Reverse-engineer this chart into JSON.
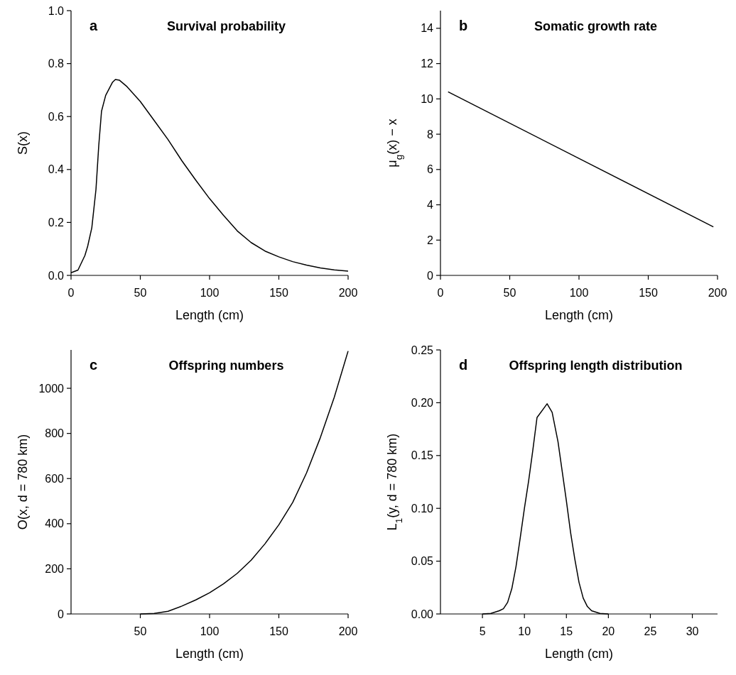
{
  "chart_data": [
    {
      "type": "line",
      "title": "Survival probability",
      "annotations": [
        "a"
      ],
      "xlabel": "Length (cm)",
      "ylabel": "S(x)",
      "xlim": [
        0,
        200
      ],
      "xticks": [
        0,
        50,
        100,
        150,
        200
      ],
      "ylim": [
        0,
        1
      ],
      "yticks": [
        {
          "value": 0,
          "label": "0.0"
        },
        {
          "value": 0.2,
          "label": "0.2"
        },
        {
          "value": 0.4,
          "label": "0.4"
        },
        {
          "value": 0.6,
          "label": "0.6"
        },
        {
          "value": 0.8,
          "label": "0.8"
        },
        {
          "value": 1,
          "label": "1.0"
        }
      ],
      "grid": false,
      "series": [
        {
          "color": "#000000",
          "x": [
            0,
            5,
            10,
            12,
            15,
            18,
            20,
            22,
            25,
            30,
            32,
            35,
            40,
            50,
            60,
            70,
            80,
            90,
            100,
            110,
            120,
            130,
            140,
            150,
            160,
            170,
            180,
            190,
            200
          ],
          "values": [
            0.01,
            0.02,
            0.075,
            0.11,
            0.18,
            0.325,
            0.49,
            0.62,
            0.68,
            0.73,
            0.74,
            0.737,
            0.715,
            0.657,
            0.585,
            0.513,
            0.433,
            0.36,
            0.29,
            0.227,
            0.168,
            0.124,
            0.092,
            0.07,
            0.052,
            0.039,
            0.028,
            0.021,
            0.016
          ]
        }
      ]
    },
    {
      "type": "line",
      "title": "Somatic growth rate",
      "annotations": [
        "b"
      ],
      "xlabel": "Length (cm)",
      "ylabel": "μ$_{g}$(x) − x",
      "xlim": [
        0,
        200
      ],
      "xticks": [
        0,
        50,
        100,
        150,
        200
      ],
      "ylim": [
        0,
        15
      ],
      "yticks": [
        0,
        2,
        4,
        6,
        8,
        10,
        12,
        14
      ],
      "grid": false,
      "series": [
        {
          "color": "#000000",
          "x": [
            5.5,
            197
          ],
          "values": [
            10.4,
            2.75
          ]
        }
      ]
    },
    {
      "type": "line",
      "title": "Offspring numbers",
      "annotations": [
        "c"
      ],
      "xlabel": "Length (cm)",
      "ylabel": "O(x, d = 780 km)",
      "xlim": [
        0,
        200
      ],
      "xticks": [
        50,
        100,
        150,
        200
      ],
      "ylim": [
        0,
        1170
      ],
      "yticks": [
        0,
        200,
        400,
        600,
        800,
        1000
      ],
      "grid": false,
      "series": [
        {
          "color": "#000000",
          "x": [
            50,
            60,
            70,
            80,
            90,
            100,
            110,
            120,
            130,
            140,
            150,
            160,
            170,
            180,
            190,
            200
          ],
          "values": [
            0,
            2,
            12,
            35,
            62,
            94,
            133,
            180,
            238,
            311,
            395,
            494,
            625,
            782,
            960,
            1165
          ]
        }
      ]
    },
    {
      "type": "line",
      "title": "Offspring length distribution",
      "annotations": [
        "d"
      ],
      "xlabel": "Length (cm)",
      "ylabel": "L$_{1}$(y, d = 780 km)",
      "xlim": [
        0,
        33
      ],
      "xticks": [
        5,
        10,
        15,
        20,
        25,
        30
      ],
      "ylim": [
        0,
        0.25
      ],
      "yticks": [
        {
          "value": 0,
          "label": "0.00"
        },
        {
          "value": 0.05,
          "label": "0.05"
        },
        {
          "value": 0.1,
          "label": "0.10"
        },
        {
          "value": 0.15,
          "label": "0.15"
        },
        {
          "value": 0.2,
          "label": "0.20"
        },
        {
          "value": 0.25,
          "label": "0.25"
        }
      ],
      "grid": false,
      "series": [
        {
          "color": "#000000",
          "x": [
            5,
            6,
            7,
            7.5,
            8,
            8.5,
            9,
            9.5,
            10,
            10.5,
            11,
            11.5,
            12.7,
            13.3,
            14,
            14.5,
            15,
            15.5,
            16,
            16.5,
            17,
            17.5,
            18,
            19,
            20
          ],
          "values": [
            0,
            0.0005,
            0.003,
            0.005,
            0.011,
            0.024,
            0.045,
            0.072,
            0.1,
            0.126,
            0.155,
            0.186,
            0.199,
            0.191,
            0.163,
            0.135,
            0.107,
            0.077,
            0.052,
            0.03,
            0.015,
            0.007,
            0.003,
            0.0005,
            0
          ]
        }
      ]
    }
  ]
}
